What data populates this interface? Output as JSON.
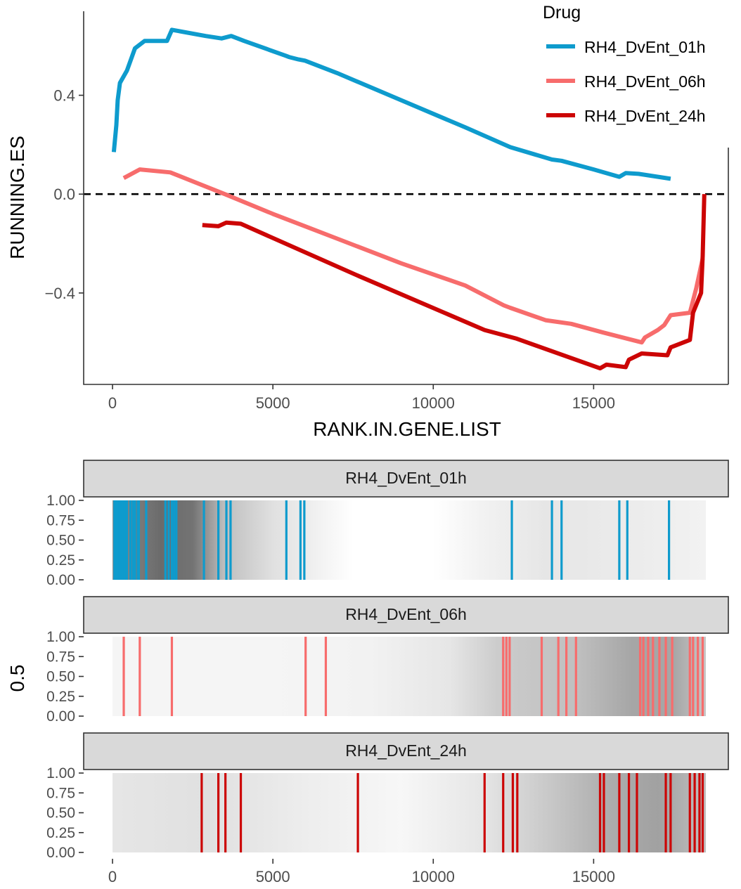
{
  "colors": {
    "RH4_DvEnt_01h": "#0e9bcd",
    "RH4_DvEnt_06h": "#f76c6c",
    "RH4_DvEnt_24h": "#cc0505",
    "strip_bg": "#d9d9d9",
    "axis": "#333333",
    "tick_text": "#4d4d4d"
  },
  "chart_data": [
    {
      "type": "line",
      "xlabel": "RANK.IN.GENE.LIST",
      "ylabel": "RUNNING.ES",
      "xlim": [
        -900,
        19200
      ],
      "ylim": [
        -0.77,
        0.74
      ],
      "x_ticks": [
        0,
        5000,
        10000,
        15000
      ],
      "x_tick_labels": [
        "0",
        "5000",
        "10000",
        "15000"
      ],
      "y_ticks": [
        0.4,
        0.0,
        -0.4
      ],
      "y_tick_labels": [
        "0.4",
        "0.0",
        "−0.4"
      ],
      "reference_line": {
        "y": 0.0,
        "style": "dashed"
      },
      "grid": false,
      "legend": {
        "title": "Drug",
        "position": "top-right",
        "entries": [
          "RH4_DvEnt_01h",
          "RH4_DvEnt_06h",
          "RH4_DvEnt_24h"
        ]
      },
      "series": [
        {
          "name": "RH4_DvEnt_01h",
          "points": [
            [
              40,
              0.17
            ],
            [
              120,
              0.28
            ],
            [
              160,
              0.38
            ],
            [
              230,
              0.45
            ],
            [
              450,
              0.5
            ],
            [
              700,
              0.59
            ],
            [
              1000,
              0.62
            ],
            [
              1700,
              0.62
            ],
            [
              1850,
              0.665
            ],
            [
              2050,
              0.66
            ],
            [
              2900,
              0.64
            ],
            [
              3400,
              0.63
            ],
            [
              3700,
              0.64
            ],
            [
              4100,
              0.62
            ],
            [
              5400,
              0.56
            ],
            [
              5500,
              0.555
            ],
            [
              5800,
              0.545
            ],
            [
              6000,
              0.54
            ],
            [
              7000,
              0.49
            ],
            [
              9000,
              0.38
            ],
            [
              11000,
              0.27
            ],
            [
              12400,
              0.19
            ],
            [
              13700,
              0.14
            ],
            [
              14000,
              0.135
            ],
            [
              15000,
              0.1
            ],
            [
              15800,
              0.07
            ],
            [
              16000,
              0.085
            ],
            [
              16400,
              0.082
            ],
            [
              17400,
              0.062
            ]
          ]
        },
        {
          "name": "RH4_DvEnt_06h",
          "points": [
            [
              350,
              0.065
            ],
            [
              850,
              0.1
            ],
            [
              1800,
              0.088
            ],
            [
              3500,
              0.0
            ],
            [
              5000,
              -0.08
            ],
            [
              6000,
              -0.13
            ],
            [
              7000,
              -0.18
            ],
            [
              9000,
              -0.28
            ],
            [
              11000,
              -0.37
            ],
            [
              12200,
              -0.45
            ],
            [
              12400,
              -0.46
            ],
            [
              13500,
              -0.51
            ],
            [
              14300,
              -0.525
            ],
            [
              15300,
              -0.56
            ],
            [
              16500,
              -0.6
            ],
            [
              16600,
              -0.58
            ],
            [
              17000,
              -0.55
            ],
            [
              17200,
              -0.53
            ],
            [
              17400,
              -0.49
            ],
            [
              18000,
              -0.48
            ],
            [
              18200,
              -0.38
            ],
            [
              18400,
              -0.26
            ]
          ]
        },
        {
          "name": "RH4_DvEnt_24h",
          "points": [
            [
              2800,
              -0.125
            ],
            [
              3300,
              -0.13
            ],
            [
              3550,
              -0.115
            ],
            [
              4000,
              -0.12
            ],
            [
              7650,
              -0.33
            ],
            [
              11600,
              -0.55
            ],
            [
              12600,
              -0.585
            ],
            [
              15200,
              -0.705
            ],
            [
              15400,
              -0.69
            ],
            [
              16000,
              -0.7
            ],
            [
              16100,
              -0.67
            ],
            [
              16500,
              -0.645
            ],
            [
              17300,
              -0.652
            ],
            [
              17400,
              -0.62
            ],
            [
              18000,
              -0.59
            ],
            [
              18100,
              -0.48
            ],
            [
              18350,
              -0.4
            ],
            [
              18400,
              -0.25
            ],
            [
              18450,
              0.0
            ]
          ]
        }
      ]
    },
    {
      "type": "barcode",
      "ylabel": "0.5",
      "xlim": [
        -900,
        19200
      ],
      "ylim": [
        0,
        1
      ],
      "x_ticks": [
        0,
        5000,
        10000,
        15000
      ],
      "x_tick_labels": [
        "0",
        "5000",
        "10000",
        "15000"
      ],
      "y_ticks": [
        1.0,
        0.75,
        0.5,
        0.25,
        0.0
      ],
      "y_tick_labels": [
        "1.00",
        "0.75",
        "0.50",
        "0.25",
        "0.00"
      ],
      "gene_list_range": [
        0,
        18500
      ],
      "panels": [
        {
          "title": "RH4_DvEnt_01h",
          "series": "RH4_DvEnt_01h",
          "density_stops": [
            [
              0,
              0.55
            ],
            [
              1500,
              0.42
            ],
            [
              2500,
              0.45
            ],
            [
              3500,
              0.75
            ],
            [
              5000,
              0.88
            ],
            [
              7500,
              1.0
            ],
            [
              10000,
              1.0
            ],
            [
              11500,
              0.95
            ],
            [
              13500,
              0.9
            ],
            [
              16000,
              0.92
            ],
            [
              18500,
              0.95
            ]
          ],
          "hits": [
            60,
            110,
            170,
            230,
            270,
            330,
            380,
            450,
            560,
            640,
            700,
            790,
            820,
            1050,
            1650,
            1750,
            1850,
            1920,
            1990,
            2850,
            3300,
            3550,
            3680,
            5420,
            5860,
            5980,
            12450,
            13700,
            14000,
            15800,
            16050,
            17350
          ]
        },
        {
          "title": "RH4_DvEnt_06h",
          "series": "RH4_DvEnt_06h",
          "density_stops": [
            [
              0,
              0.96
            ],
            [
              5000,
              0.96
            ],
            [
              8000,
              0.95
            ],
            [
              10500,
              0.9
            ],
            [
              12000,
              0.8
            ],
            [
              14500,
              0.75
            ],
            [
              16200,
              0.65
            ],
            [
              17500,
              0.65
            ],
            [
              18500,
              0.78
            ]
          ],
          "hits": [
            350,
            850,
            1850,
            6020,
            6650,
            12180,
            12280,
            12380,
            13380,
            13900,
            14150,
            14450,
            16450,
            16550,
            16700,
            16850,
            17050,
            17250,
            17450,
            18000,
            18100,
            18250,
            18400
          ]
        },
        {
          "title": "RH4_DvEnt_24h",
          "series": "RH4_DvEnt_24h",
          "density_stops": [
            [
              0,
              0.9
            ],
            [
              3000,
              0.88
            ],
            [
              6000,
              0.93
            ],
            [
              9000,
              0.97
            ],
            [
              11500,
              0.9
            ],
            [
              13000,
              0.82
            ],
            [
              15500,
              0.68
            ],
            [
              17000,
              0.63
            ],
            [
              18500,
              0.75
            ]
          ],
          "hits": [
            2780,
            3300,
            3520,
            4000,
            7650,
            11600,
            12180,
            12480,
            12620,
            15200,
            15320,
            15800,
            16100,
            16350,
            17250,
            17400,
            18000,
            18150,
            18300,
            18400
          ]
        }
      ]
    }
  ]
}
